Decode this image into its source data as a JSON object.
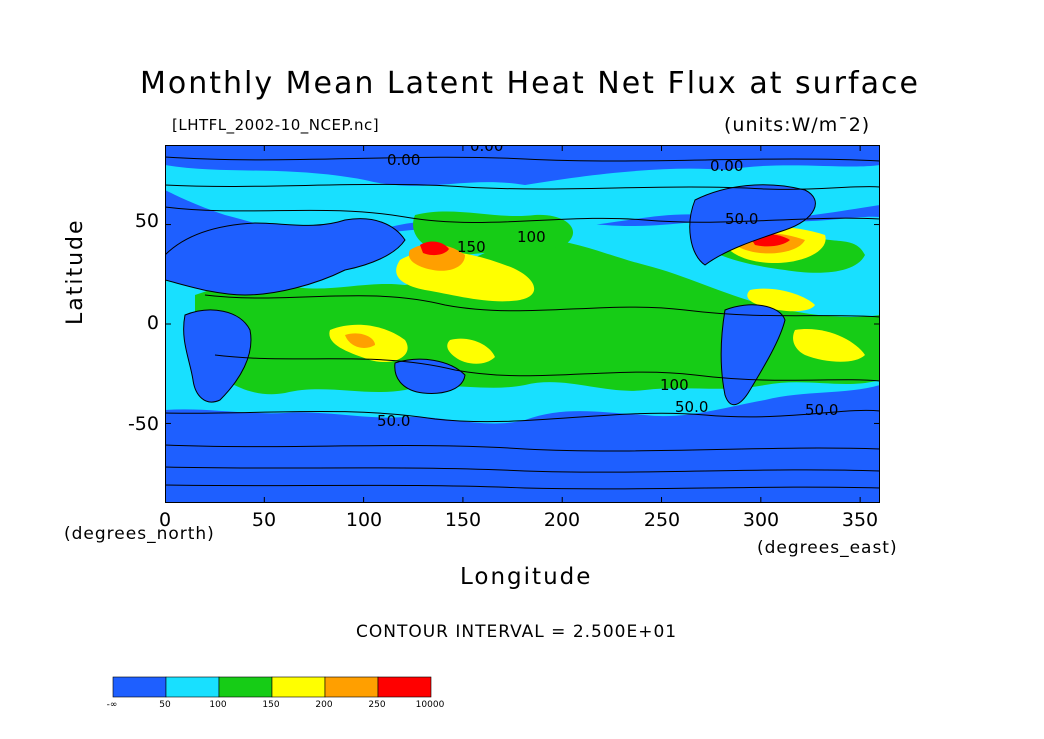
{
  "chart_data": {
    "type": "heatmap",
    "title": "Monthly Mean Latent Heat Net Flux at surface",
    "source_file": "[LHTFL_2002-10_NCEP.nc]",
    "units": "(units:W/m¯2)",
    "xlabel": "Longitude",
    "ylabel": "Latitude",
    "x_units": "(degrees_east)",
    "y_units": "(degrees_north)",
    "xlim": [
      0,
      360
    ],
    "ylim": [
      -90,
      90
    ],
    "x_ticks": [
      0,
      50,
      100,
      150,
      200,
      250,
      300,
      350
    ],
    "y_ticks": [
      50,
      0,
      -50
    ],
    "contour_interval": "CONTOUR INTERVAL = 2.500E+01",
    "contour_labels": [
      "0.00",
      "0.00",
      "0.00",
      "50.0",
      "50.0",
      "50.0",
      "50.0",
      "100",
      "100",
      "150"
    ],
    "colorbar": {
      "boundaries": [
        "-∞",
        "50",
        "100",
        "150",
        "200",
        "250",
        "10000"
      ],
      "colors": [
        "#1e5fff",
        "#18e0ff",
        "#16cc16",
        "#ffff00",
        "#ff9f00",
        "#ff0000"
      ]
    }
  }
}
